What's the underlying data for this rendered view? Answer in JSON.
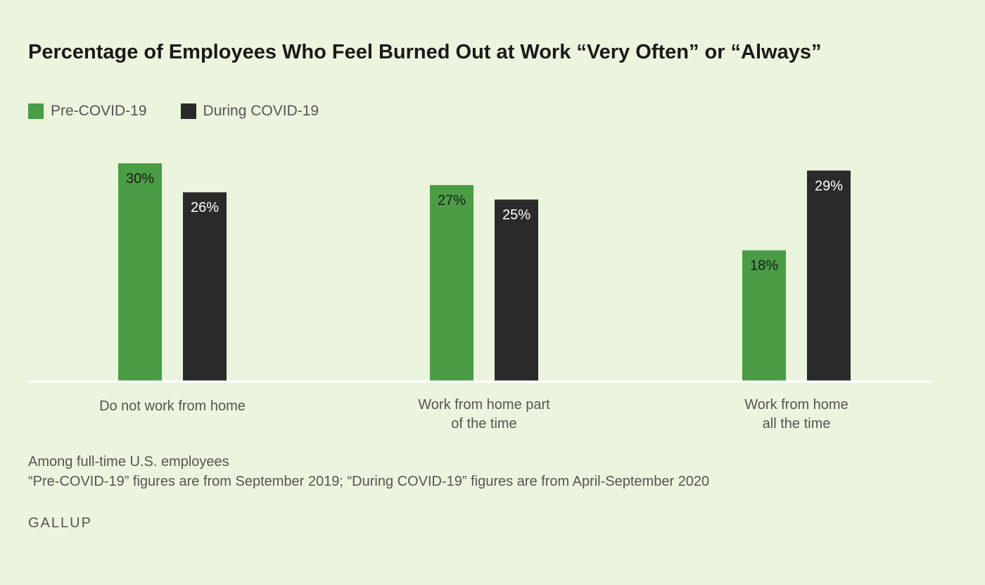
{
  "chart_data": {
    "type": "bar",
    "title": "Percentage of Employees Who Feel Burned Out at Work “Very Often” or “Always”",
    "categories": [
      [
        "Do not work from home"
      ],
      [
        "Work from home part",
        "of the time"
      ],
      [
        "Work from home",
        "all the time"
      ]
    ],
    "series": [
      {
        "name": "Pre-COVID-19",
        "color": "#4a9c45",
        "values": [
          30,
          27,
          18
        ],
        "labels": [
          "30%",
          "27%",
          "18%"
        ],
        "label_color": "#1a1a1a"
      },
      {
        "name": "During COVID-19",
        "color": "#2a2a2a",
        "values": [
          26,
          25,
          29
        ],
        "labels": [
          "26%",
          "25%",
          "29%"
        ],
        "label_color": "#ffffff"
      }
    ],
    "ylim": [
      0,
      30
    ],
    "legend_position": "top-left",
    "grid": false,
    "xlabel": "",
    "ylabel": ""
  },
  "notes": [
    "Among full-time U.S. employees",
    "“Pre-COVID-19” figures are from September 2019; “During COVID-19” figures are from April-September 2020"
  ],
  "brand": "GALLUP"
}
